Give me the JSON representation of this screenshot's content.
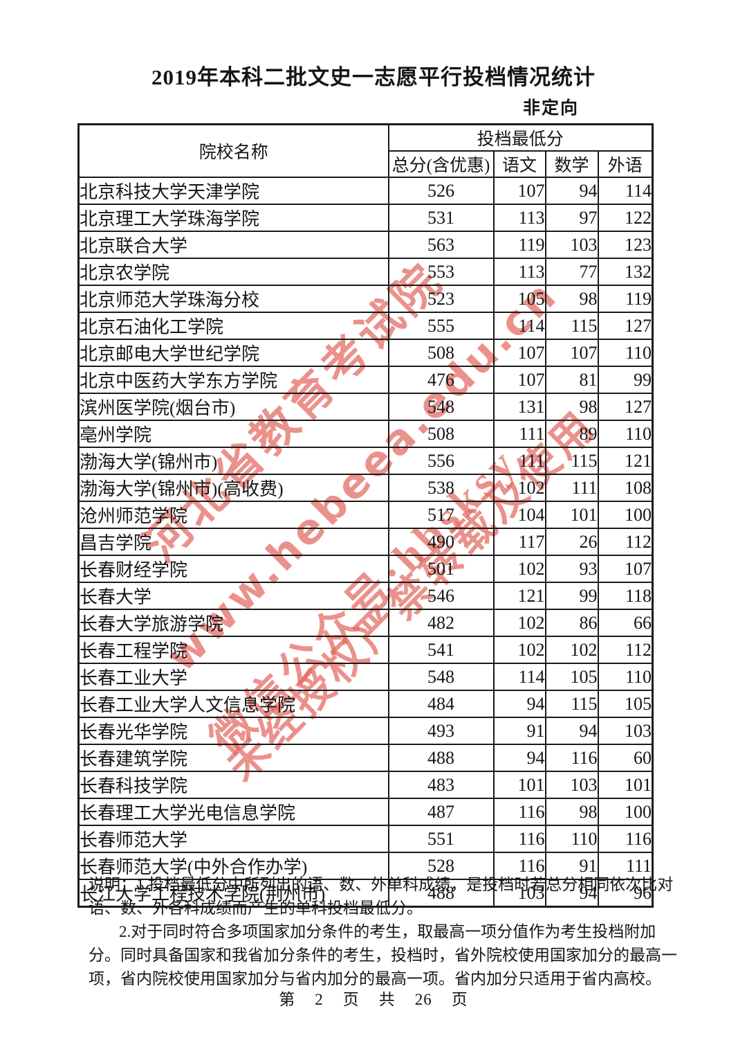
{
  "header": {
    "title": "2019年本科二批文史一志愿平行投档情况统计",
    "category": "非定向"
  },
  "table": {
    "col_school": "院校名称",
    "col_min_score_group": "投档最低分",
    "col_total": "总分(含优惠)",
    "col_chinese": "语文",
    "col_math": "数学",
    "col_foreign": "外语",
    "rows": [
      {
        "school": "北京科技大学天津学院",
        "total": "526",
        "chinese": "107",
        "math": "94",
        "foreign": "114"
      },
      {
        "school": "北京理工大学珠海学院",
        "total": "531",
        "chinese": "113",
        "math": "97",
        "foreign": "122"
      },
      {
        "school": "北京联合大学",
        "total": "563",
        "chinese": "119",
        "math": "103",
        "foreign": "123"
      },
      {
        "school": "北京农学院",
        "total": "553",
        "chinese": "113",
        "math": "77",
        "foreign": "132"
      },
      {
        "school": "北京师范大学珠海分校",
        "total": "523",
        "chinese": "105",
        "math": "98",
        "foreign": "119"
      },
      {
        "school": "北京石油化工学院",
        "total": "555",
        "chinese": "114",
        "math": "115",
        "foreign": "127"
      },
      {
        "school": "北京邮电大学世纪学院",
        "total": "508",
        "chinese": "107",
        "math": "107",
        "foreign": "110"
      },
      {
        "school": "北京中医药大学东方学院",
        "total": "476",
        "chinese": "107",
        "math": "81",
        "foreign": "99"
      },
      {
        "school": "滨州医学院(烟台市)",
        "total": "548",
        "chinese": "131",
        "math": "98",
        "foreign": "127"
      },
      {
        "school": "亳州学院",
        "total": "508",
        "chinese": "111",
        "math": "89",
        "foreign": "110"
      },
      {
        "school": "渤海大学(锦州市)",
        "total": "556",
        "chinese": "111",
        "math": "115",
        "foreign": "121"
      },
      {
        "school": "渤海大学(锦州市)(高收费)",
        "total": "538",
        "chinese": "102",
        "math": "111",
        "foreign": "108"
      },
      {
        "school": "沧州师范学院",
        "total": "517",
        "chinese": "104",
        "math": "101",
        "foreign": "100"
      },
      {
        "school": "昌吉学院",
        "total": "490",
        "chinese": "117",
        "math": "26",
        "foreign": "112"
      },
      {
        "school": "长春财经学院",
        "total": "501",
        "chinese": "102",
        "math": "93",
        "foreign": "107"
      },
      {
        "school": "长春大学",
        "total": "546",
        "chinese": "121",
        "math": "99",
        "foreign": "118"
      },
      {
        "school": "长春大学旅游学院",
        "total": "482",
        "chinese": "102",
        "math": "86",
        "foreign": "66"
      },
      {
        "school": "长春工程学院",
        "total": "541",
        "chinese": "102",
        "math": "102",
        "foreign": "112"
      },
      {
        "school": "长春工业大学",
        "total": "548",
        "chinese": "114",
        "math": "105",
        "foreign": "110"
      },
      {
        "school": "长春工业大学人文信息学院",
        "total": "484",
        "chinese": "94",
        "math": "115",
        "foreign": "105"
      },
      {
        "school": "长春光华学院",
        "total": "493",
        "chinese": "91",
        "math": "94",
        "foreign": "103"
      },
      {
        "school": "长春建筑学院",
        "total": "488",
        "chinese": "94",
        "math": "116",
        "foreign": "60"
      },
      {
        "school": "长春科技学院",
        "total": "483",
        "chinese": "101",
        "math": "103",
        "foreign": "101"
      },
      {
        "school": "长春理工大学光电信息学院",
        "total": "487",
        "chinese": "116",
        "math": "98",
        "foreign": "100"
      },
      {
        "school": "长春师范大学",
        "total": "551",
        "chinese": "116",
        "math": "110",
        "foreign": "116"
      },
      {
        "school": "长春师范大学(中外合作办学)",
        "total": "528",
        "chinese": "116",
        "math": "91",
        "foreign": "111"
      },
      {
        "school": "长江大学工程技术学院(荆州市)",
        "total": "488",
        "chinese": "103",
        "math": "94",
        "foreign": "96"
      }
    ]
  },
  "notes": {
    "lines": [
      {
        "text": "说明：1.投档最低分中所列出的语、数、外单科成绩，是投档时若总分相同依次比对",
        "indent": false
      },
      {
        "text": "语、数、外各科成绩而产生的单科投档最低分。",
        "indent": false
      },
      {
        "text": "2.对于同时符合多项国家加分条件的考生，取最高一项分值作为考生投档附加",
        "indent": true
      },
      {
        "text": "分。同时具备国家和我省加分条件的考生，投档时，省外院校使用国家加分的最高一",
        "indent": false
      },
      {
        "text": "项，省内院校使用国家加分与省内加分的最高一项。省内加分只适用于省内高校。",
        "indent": false
      }
    ]
  },
  "footer": {
    "label_no": "第",
    "page_number": "2",
    "label_page1": "页",
    "label_of": "共",
    "total_pages": "26",
    "label_page2": "页"
  },
  "watermark": {
    "color": "#e4685f",
    "lines": [
      "河北省教育考试院",
      "www.hebeea.edu.cn",
      "微信公众号·hbsksy",
      "未经授权严禁转载及使用"
    ]
  }
}
